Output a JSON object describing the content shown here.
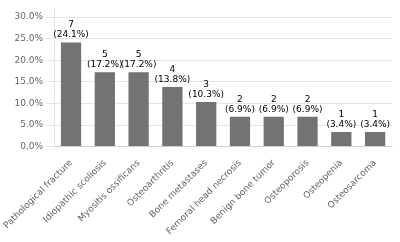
{
  "chart_data": {
    "type": "bar",
    "categories": [
      "Pathological fracture",
      "Idiopathic scoliosis",
      "Myositis ossificans",
      "Osteoarthritis",
      "Bone metastases",
      "Femoral head necrosis",
      "Benign bone tumor",
      "Osteoporosis",
      "Osteopenia",
      "Osteosarcoma"
    ],
    "values": [
      24.1,
      17.2,
      17.2,
      13.8,
      10.3,
      6.9,
      6.9,
      6.9,
      3.4,
      3.4
    ],
    "value_labels": [
      "7\n(24.1%)",
      "5\n(17.2%)",
      "5\n(17.2%)",
      "4\n(13.8%)",
      "3\n(10.3%)",
      "2\n(6.9%)",
      "2\n(6.9%)",
      "2\n(6.9%)",
      "1\n(3.4%)",
      "1\n(3.4%)"
    ],
    "data_labels": true,
    "color": "#737373",
    "ylim": [
      0,
      32
    ],
    "yticks": [
      {
        "value": 0,
        "label": "0.0%"
      },
      {
        "value": 5,
        "label": "5.0%"
      },
      {
        "value": 10,
        "label": "10.0%"
      },
      {
        "value": 15,
        "label": "15.0%"
      },
      {
        "value": 20,
        "label": "20.0%"
      },
      {
        "value": 25,
        "label": "25.0%"
      },
      {
        "value": 30,
        "label": "30.0%"
      }
    ],
    "grid": true
  }
}
